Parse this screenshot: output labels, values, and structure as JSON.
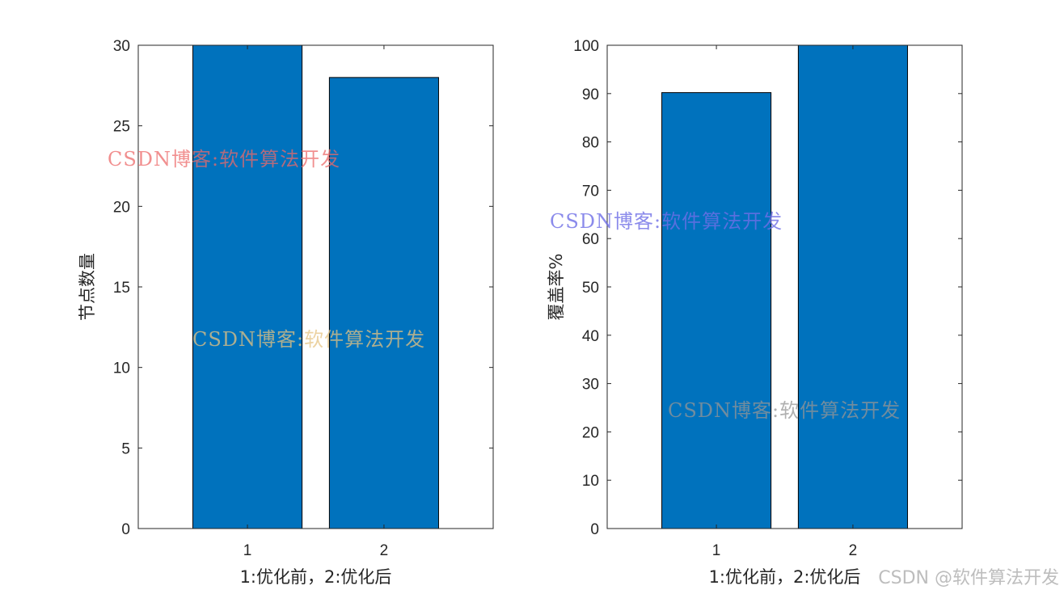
{
  "chart_data": [
    {
      "type": "bar",
      "categories": [
        "1",
        "2"
      ],
      "values": [
        30,
        28
      ],
      "xlabel": "1:优化前，2:优化后",
      "ylabel": "节点数量",
      "ylim": [
        0,
        30
      ],
      "yticks": [
        0,
        5,
        10,
        15,
        20,
        25,
        30
      ],
      "grid": false,
      "bar_color": "#0072BD"
    },
    {
      "type": "bar",
      "categories": [
        "1",
        "2"
      ],
      "values": [
        90.2,
        100
      ],
      "xlabel": "1:优化前，2:优化后",
      "ylabel": "覆盖率%",
      "ylim": [
        0,
        100
      ],
      "yticks": [
        0,
        10,
        20,
        30,
        40,
        50,
        60,
        70,
        80,
        90,
        100
      ],
      "grid": false,
      "bar_color": "#0072BD"
    }
  ],
  "watermarks": [
    "CSDN博客:软件算法开发",
    "CSDN博客:软件算法开发",
    "CSDN博客:软件算法开发",
    "CSDN博客:软件算法开发"
  ],
  "credit": "CSDN @软件算法开发"
}
